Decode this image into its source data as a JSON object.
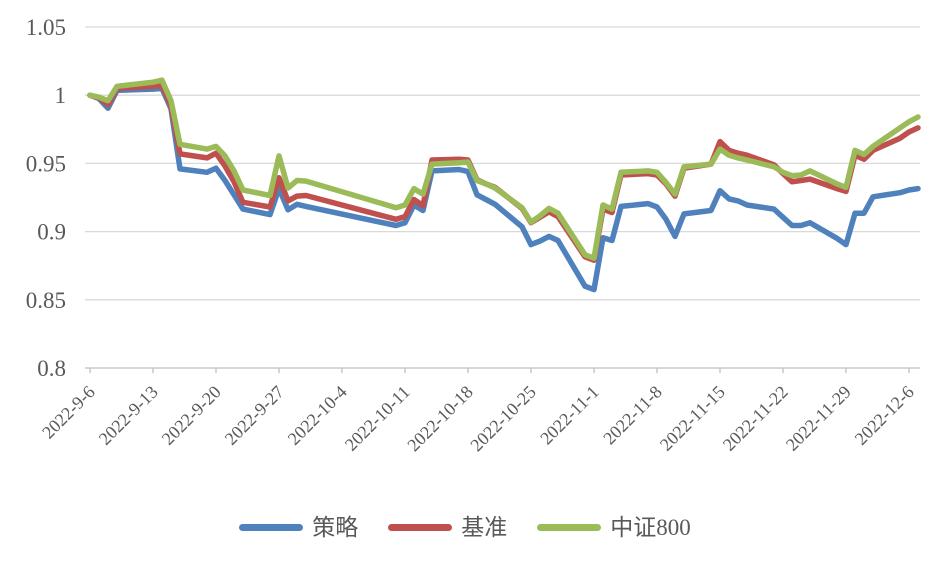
{
  "colors": {
    "background": "#FFFFFF",
    "axis_text": "#595959",
    "gridline": "#D9D9D9",
    "axis_line": "#BFBFBF",
    "series_blue": "#4F81BD",
    "series_red": "#C0504D",
    "series_green": "#9BBB59"
  },
  "chart_data": {
    "type": "line",
    "title": "",
    "xlabel": "",
    "ylabel": "",
    "ylim": [
      0.8,
      1.05
    ],
    "grid": true,
    "legend_position": "bottom",
    "y_ticks": [
      0.8,
      0.85,
      0.9,
      0.95,
      1,
      1.05
    ],
    "y_tick_labels": [
      "0.8",
      "0.85",
      "0.9",
      "0.95",
      "1",
      "1.05"
    ],
    "x_tick_labels": [
      "2022-9-6",
      "2022-9-13",
      "2022-9-20",
      "2022-9-27",
      "2022-10-4",
      "2022-10-11",
      "2022-10-18",
      "2022-10-25",
      "2022-11-1",
      "2022-11-8",
      "2022-11-15",
      "2022-11-22",
      "2022-11-29",
      "2022-12-6"
    ],
    "dates": [
      "2022-9-6",
      "2022-9-7",
      "2022-9-8",
      "2022-9-9",
      "2022-9-13",
      "2022-9-14",
      "2022-9-15",
      "2022-9-16",
      "2022-9-19",
      "2022-9-20",
      "2022-9-21",
      "2022-9-22",
      "2022-9-23",
      "2022-9-26",
      "2022-9-27",
      "2022-9-28",
      "2022-9-29",
      "2022-9-30",
      "2022-10-10",
      "2022-10-11",
      "2022-10-12",
      "2022-10-13",
      "2022-10-14",
      "2022-10-17",
      "2022-10-18",
      "2022-10-19",
      "2022-10-20",
      "2022-10-21",
      "2022-10-24",
      "2022-10-25",
      "2022-10-26",
      "2022-10-27",
      "2022-10-28",
      "2022-10-31",
      "2022-11-1",
      "2022-11-2",
      "2022-11-3",
      "2022-11-4",
      "2022-11-7",
      "2022-11-8",
      "2022-11-9",
      "2022-11-10",
      "2022-11-11",
      "2022-11-14",
      "2022-11-15",
      "2022-11-16",
      "2022-11-17",
      "2022-11-18",
      "2022-11-21",
      "2022-11-22",
      "2022-11-23",
      "2022-11-24",
      "2022-11-25",
      "2022-11-28",
      "2022-11-29",
      "2022-11-30",
      "2022-12-1",
      "2022-12-2",
      "2022-12-5",
      "2022-12-6",
      "2022-12-7"
    ],
    "series": [
      {
        "name": "策略",
        "color": "#4F81BD",
        "values": [
          1.0,
          0.9975,
          0.9905,
          1.0035,
          1.0045,
          1.005,
          0.99,
          0.946,
          0.9435,
          0.9465,
          0.9375,
          0.927,
          0.9165,
          0.9125,
          0.9315,
          0.916,
          0.92,
          0.9185,
          0.9045,
          0.9065,
          0.9195,
          0.9155,
          0.9445,
          0.9455,
          0.944,
          0.927,
          0.9235,
          0.92,
          0.9035,
          0.8905,
          0.893,
          0.8965,
          0.8935,
          0.86,
          0.8575,
          0.8955,
          0.8935,
          0.9185,
          0.9205,
          0.918,
          0.909,
          0.8965,
          0.913,
          0.9155,
          0.93,
          0.924,
          0.9225,
          0.9195,
          0.9165,
          0.9105,
          0.9045,
          0.9045,
          0.9065,
          0.895,
          0.8905,
          0.9135,
          0.9135,
          0.9255,
          0.9285,
          0.9305,
          0.9315
        ]
      },
      {
        "name": "基准",
        "color": "#C0504D",
        "values": [
          1.0,
          0.998,
          0.993,
          1.005,
          1.0065,
          1.007,
          0.992,
          0.957,
          0.954,
          0.9575,
          0.948,
          0.9365,
          0.9215,
          0.918,
          0.9395,
          0.9225,
          0.926,
          0.9265,
          0.909,
          0.911,
          0.9235,
          0.919,
          0.9525,
          0.953,
          0.9525,
          0.938,
          0.935,
          0.9325,
          0.917,
          0.9065,
          0.9105,
          0.9145,
          0.911,
          0.8815,
          0.879,
          0.9165,
          0.914,
          0.9415,
          0.9425,
          0.9415,
          0.935,
          0.926,
          0.9465,
          0.9495,
          0.966,
          0.9595,
          0.9575,
          0.956,
          0.949,
          0.9425,
          0.9365,
          0.9375,
          0.9385,
          0.9315,
          0.9295,
          0.956,
          0.953,
          0.9595,
          0.9685,
          0.973,
          0.976
        ]
      },
      {
        "name": "中证800",
        "color": "#9BBB59",
        "values": [
          1.0,
          0.9985,
          0.996,
          1.0065,
          1.0095,
          1.011,
          0.996,
          0.964,
          0.9605,
          0.9625,
          0.9555,
          0.9445,
          0.9305,
          0.9265,
          0.9555,
          0.932,
          0.9375,
          0.937,
          0.9175,
          0.9195,
          0.9315,
          0.9275,
          0.9495,
          0.9505,
          0.951,
          0.9375,
          0.935,
          0.932,
          0.9175,
          0.907,
          0.9115,
          0.917,
          0.9135,
          0.883,
          0.8805,
          0.9195,
          0.9165,
          0.9435,
          0.9445,
          0.9435,
          0.936,
          0.9275,
          0.9475,
          0.9495,
          0.9605,
          0.956,
          0.954,
          0.9525,
          0.9475,
          0.9435,
          0.941,
          0.9415,
          0.9445,
          0.935,
          0.9325,
          0.9595,
          0.9565,
          0.9625,
          0.976,
          0.9805,
          0.984
        ]
      }
    ]
  }
}
